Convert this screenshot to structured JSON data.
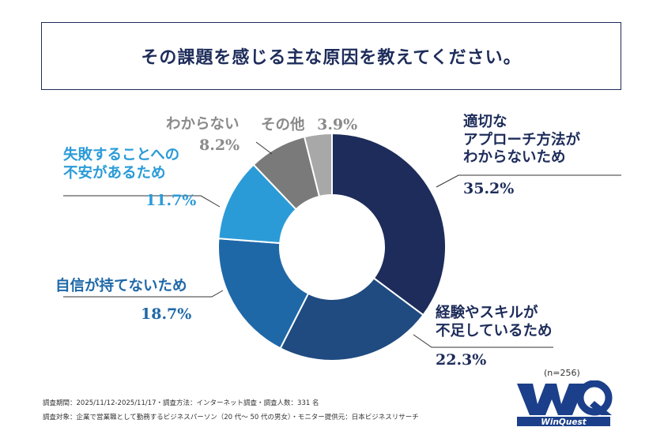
{
  "title": "その課題を感じる主な原因を教えてください。",
  "chart_data": {
    "type": "pie",
    "donut": true,
    "categories": [
      "適切なアプローチ方法がわからないため",
      "経験やスキルが不足しているため",
      "自信が持てないため",
      "失敗することへの不安があるため",
      "わからない",
      "その他"
    ],
    "values": [
      35.2,
      22.3,
      18.7,
      11.7,
      8.2,
      3.9
    ],
    "colors": [
      "#1d2c5a",
      "#1f4b80",
      "#1f68a8",
      "#2b9bd8",
      "#7a7a7a",
      "#a8a8a8"
    ]
  },
  "labels": {
    "s0_line1": "適切な",
    "s0_line2": "アプローチ方法が",
    "s0_line3": "わからないため",
    "s0_pct": "35.2%",
    "s1_line1": "経験やスキルが",
    "s1_line2": "不足しているため",
    "s1_pct": "22.3%",
    "s2_line1": "自信が持てないため",
    "s2_pct": "18.7%",
    "s3_line1": "失敗することへの",
    "s3_line2": "不安があるため",
    "s3_pct": "11.7%",
    "s4_line1": "わからない",
    "s4_pct": "8.2%",
    "s5_line1": "その他",
    "s5_pct": "3.9%"
  },
  "sample": "(n=256)",
  "notes": {
    "line1": "調査期間：2025/11/12-2025/11/17・調査方法：インターネット調査・調査人数：331 名",
    "line2": "調査対象：企業で営業職として勤務するビジネスパーソン（20 代～ 50 代の男女）・モニター提供元：日本ビジネスリサーチ"
  },
  "logo_text": "WinQuest",
  "logo_mark": "WQ"
}
